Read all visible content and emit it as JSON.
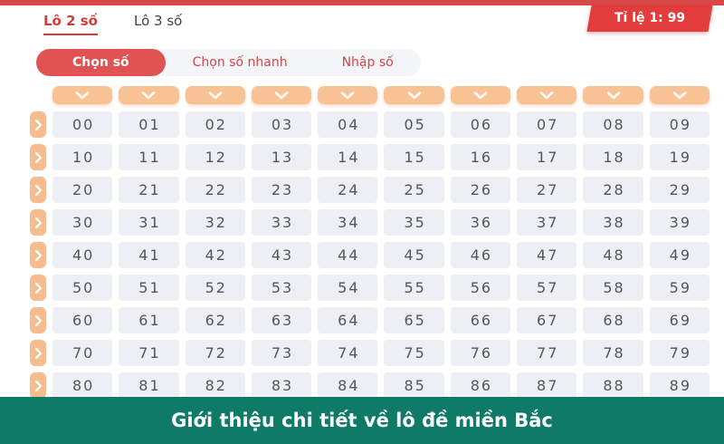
{
  "header": {
    "tabs": [
      {
        "label": "Lô 2 số",
        "active": true
      },
      {
        "label": "Lô 3 số",
        "active": false
      }
    ],
    "ratio_badge": "Tỉ lệ 1: 99"
  },
  "subtabs": [
    {
      "label": "Chọn số",
      "active": true
    },
    {
      "label": "Chọn số nhanh",
      "active": false
    },
    {
      "label": "Nhập số",
      "active": false
    }
  ],
  "grid": {
    "columns": 10,
    "column_dropdown_icon": "chevron-down-icon",
    "row_button_icon": "chevron-right-icon",
    "rows": [
      [
        "00",
        "01",
        "02",
        "03",
        "04",
        "05",
        "06",
        "07",
        "08",
        "09"
      ],
      [
        "10",
        "11",
        "12",
        "13",
        "14",
        "15",
        "16",
        "17",
        "18",
        "19"
      ],
      [
        "20",
        "21",
        "22",
        "23",
        "24",
        "25",
        "26",
        "27",
        "28",
        "29"
      ],
      [
        "30",
        "31",
        "32",
        "33",
        "34",
        "35",
        "36",
        "37",
        "38",
        "39"
      ],
      [
        "40",
        "41",
        "42",
        "43",
        "44",
        "45",
        "46",
        "47",
        "48",
        "49"
      ],
      [
        "50",
        "51",
        "52",
        "53",
        "54",
        "55",
        "56",
        "57",
        "58",
        "59"
      ],
      [
        "60",
        "61",
        "62",
        "63",
        "64",
        "65",
        "66",
        "67",
        "68",
        "69"
      ],
      [
        "70",
        "71",
        "72",
        "73",
        "74",
        "75",
        "76",
        "77",
        "78",
        "79"
      ],
      [
        "80",
        "81",
        "82",
        "83",
        "84",
        "85",
        "86",
        "87",
        "88",
        "89"
      ]
    ]
  },
  "footer": {
    "title": "Giới thiệu chi tiết về lô đề miền Bắc"
  },
  "colors": {
    "top_bar_red": "#d94747",
    "badge_red": "#e23c3c",
    "tab_active_red": "#d43c3c",
    "pill_red": "#e15353",
    "subtab_text_red": "#d84444",
    "subtab_bar_bg": "#f3f5f9",
    "dropdown_peach": "#f8c295",
    "row_button_peach": "#f7bc8e",
    "cell_bg": "#edeff4",
    "cell_text": "#51565f",
    "footer_teal": "#0e7a67"
  }
}
